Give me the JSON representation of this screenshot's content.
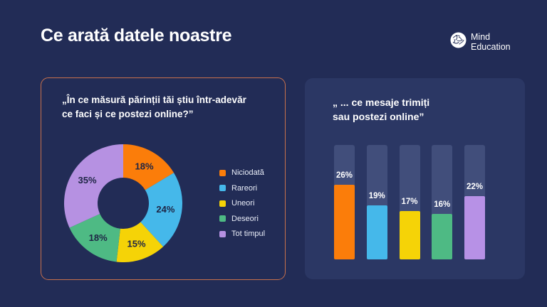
{
  "header": {
    "title": "Ce arată datele noastre",
    "logo": {
      "line1": "Mind",
      "line2": "Education"
    }
  },
  "colors": {
    "background": "#222c56",
    "right_panel_bg": "#2b3764",
    "left_panel_border": "#c7704c",
    "bar_track": "#414e7b",
    "donut_label_text": "#1e2545",
    "legend_text": "#e9edf8",
    "question_text": "#ffffff"
  },
  "donut_panel": {
    "question_lines": [
      "„În ce măsură părinții tăi știu într-adevăr",
      "ce faci și ce postezi online?”"
    ]
  },
  "bar_panel": {
    "question_lines": [
      "„ ... ce mesaje trimiți",
      "sau postezi online”"
    ]
  },
  "chart_data": [
    {
      "type": "pie",
      "subtype": "donut",
      "title": "„În ce măsură părinții tăi știu într-adevăr ce faci și ce postezi online?”",
      "categories": [
        "Niciodată",
        "Rareori",
        "Uneori",
        "Deseori",
        "Tot timpul"
      ],
      "values": [
        18,
        24,
        15,
        18,
        35
      ],
      "labels": [
        "18%",
        "24%",
        "15%",
        "18%",
        "35%"
      ],
      "colors": [
        "#fb7d0a",
        "#45b8ea",
        "#f5d307",
        "#4eba84",
        "#b691e2"
      ],
      "start_angle_deg": 0,
      "direction": "clockwise",
      "legend_position": "right",
      "outer_radius": 83,
      "inner_radius": 36
    },
    {
      "type": "bar",
      "title": "„ ... ce mesaje trimiți sau postezi online”",
      "categories": [
        "Niciodată",
        "Rareori",
        "Uneori",
        "Deseori",
        "Tot timpul"
      ],
      "values": [
        26,
        19,
        17,
        16,
        22
      ],
      "labels": [
        "26%",
        "19%",
        "17%",
        "16%",
        "22%"
      ],
      "colors": [
        "#fb7d0a",
        "#45b8ea",
        "#f5d307",
        "#4eba84",
        "#b791e6"
      ],
      "ylim": [
        0,
        40
      ],
      "grid": false,
      "legend_position": "none"
    }
  ]
}
